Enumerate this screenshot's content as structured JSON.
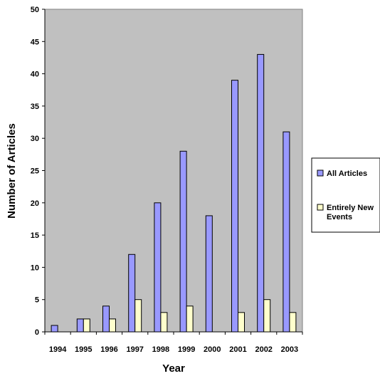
{
  "chart_data": {
    "type": "bar",
    "title": "",
    "xlabel": "Year",
    "ylabel": "Number of Articles",
    "categories": [
      "1994",
      "1995",
      "1996",
      "1997",
      "1998",
      "1999",
      "2000",
      "2001",
      "2002",
      "2003"
    ],
    "series": [
      {
        "name": "All Articles",
        "values": [
          1,
          2,
          4,
          12,
          20,
          28,
          18,
          39,
          43,
          31
        ]
      },
      {
        "name": "Entirely New Events",
        "values": [
          0,
          2,
          2,
          5,
          3,
          4,
          0,
          3,
          5,
          3
        ]
      }
    ],
    "ylim": [
      0,
      50
    ],
    "yticks": [
      "0",
      "5",
      "10",
      "15",
      "20",
      "25",
      "30",
      "35",
      "40",
      "45",
      "50"
    ],
    "grid": false,
    "legend_position": "right",
    "colors": {
      "plot_background": "#c0c0c0",
      "page_background": "#ffffff",
      "All Articles": "#9999ff",
      "Entirely New Events": "#ffffcc",
      "bar_outline": "#000000"
    }
  },
  "legend": {
    "items": [
      {
        "lines": [
          "All Articles"
        ]
      },
      {
        "lines": [
          "Entirely New",
          "Events"
        ]
      }
    ]
  }
}
